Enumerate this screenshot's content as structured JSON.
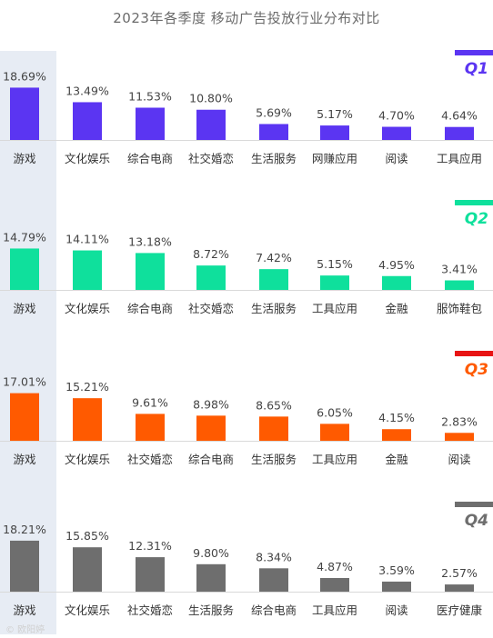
{
  "title": "2023年各季度 移动广告投放行业分布对比",
  "watermark": "© 欧阳婷",
  "chart_data": [
    {
      "type": "bar",
      "quarter": "Q1",
      "color": "#5b35f2",
      "categories": [
        "游戏",
        "文化娱乐",
        "综合电商",
        "社交婚恋",
        "生活服务",
        "网赚应用",
        "阅读",
        "工具应用"
      ],
      "values": [
        18.69,
        13.49,
        11.53,
        10.8,
        5.69,
        5.17,
        4.7,
        4.64
      ],
      "labels": [
        "18.69%",
        "13.49%",
        "11.53%",
        "10.80%",
        "5.69%",
        "5.17%",
        "4.70%",
        "4.64%"
      ]
    },
    {
      "type": "bar",
      "quarter": "Q2",
      "color": "#0fe09c",
      "categories": [
        "游戏",
        "文化娱乐",
        "综合电商",
        "社交婚恋",
        "生活服务",
        "工具应用",
        "金融",
        "服饰鞋包"
      ],
      "values": [
        14.79,
        14.11,
        13.18,
        8.72,
        7.42,
        5.15,
        4.95,
        3.41
      ],
      "labels": [
        "14.79%",
        "14.11%",
        "13.18%",
        "8.72%",
        "7.42%",
        "5.15%",
        "4.95%",
        "3.41%"
      ]
    },
    {
      "type": "bar",
      "quarter": "Q3",
      "color": "#ff5a00",
      "accent_line": "#e81414",
      "categories": [
        "游戏",
        "文化娱乐",
        "社交婚恋",
        "综合电商",
        "生活服务",
        "工具应用",
        "金融",
        "阅读"
      ],
      "values": [
        17.01,
        15.21,
        9.61,
        8.98,
        8.65,
        6.05,
        4.15,
        2.83
      ],
      "labels": [
        "17.01%",
        "15.21%",
        "9.61%",
        "8.98%",
        "8.65%",
        "6.05%",
        "4.15%",
        "2.83%"
      ]
    },
    {
      "type": "bar",
      "quarter": "Q4",
      "color": "#6e6e6e",
      "categories": [
        "游戏",
        "文化娱乐",
        "社交婚恋",
        "生活服务",
        "综合电商",
        "工具应用",
        "阅读",
        "医疗健康"
      ],
      "values": [
        18.21,
        15.85,
        12.31,
        9.8,
        8.34,
        4.87,
        3.59,
        2.57
      ],
      "labels": [
        "18.21%",
        "15.85%",
        "12.31%",
        "9.80%",
        "8.34%",
        "4.87%",
        "3.59%",
        "2.57%"
      ]
    }
  ]
}
